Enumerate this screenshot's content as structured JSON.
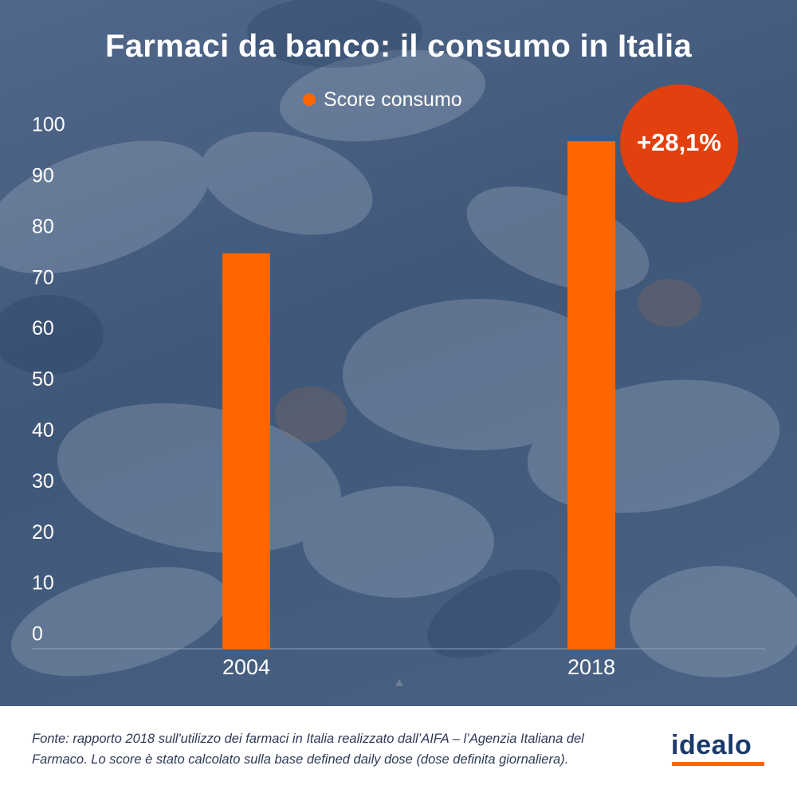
{
  "colors": {
    "bar": "#ff6600",
    "badge": "#e2400e",
    "logo_underline": "#ff6600"
  },
  "chart_data": {
    "type": "bar",
    "title": "Farmaci da banco: il consumo in Italia",
    "categories": [
      "2004",
      "2018"
    ],
    "series": [
      {
        "name": "Score consumo",
        "values": [
          75,
          97
        ]
      }
    ],
    "ylim": [
      0,
      100
    ],
    "yticks": [
      "0",
      "10",
      "20",
      "30",
      "40",
      "50",
      "60",
      "70",
      "80",
      "90",
      "100"
    ],
    "annotation": "+28,1%",
    "legend_position": "top-center",
    "grid": false
  },
  "footer": {
    "source_line1": "Fonte: rapporto 2018 sull'utilizzo dei farmaci in Italia realizzato dall’AIFA – l’Agenzia Italiana del",
    "source_line2": "Farmaco. Lo score è stato calcolato sulla base defined daily dose (dose definita giornaliera).",
    "logo": "idealo"
  }
}
